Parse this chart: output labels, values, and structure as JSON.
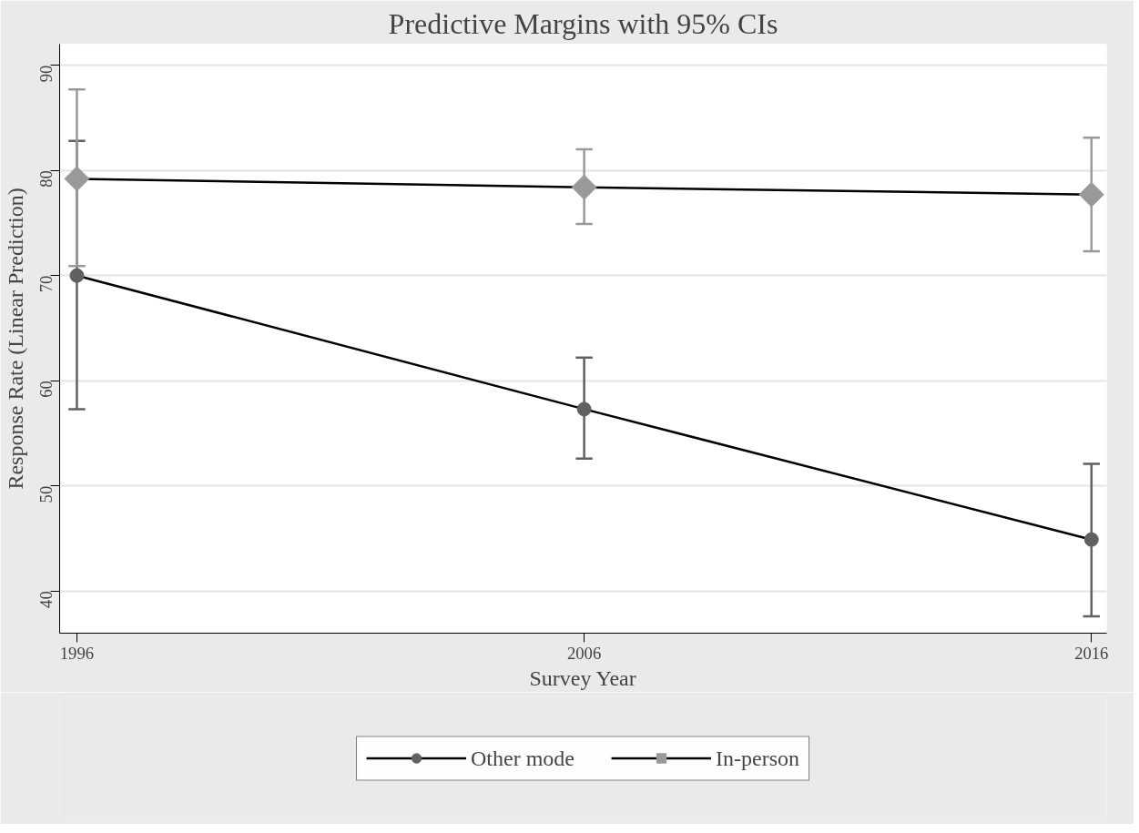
{
  "chart_data": {
    "type": "line",
    "title": "Predictive Margins with 95% CIs",
    "xlabel": "Survey Year",
    "ylabel": "Response Rate (Linear Prediction)",
    "x": [
      1996,
      2006,
      2016
    ],
    "series": [
      {
        "name": "Other mode",
        "color": "#606060",
        "marker": "circle",
        "values": [
          70.0,
          57.3,
          44.9
        ],
        "errors": [
          [
            57.3,
            82.8
          ],
          [
            52.6,
            62.2
          ],
          [
            37.6,
            52.1
          ]
        ]
      },
      {
        "name": "In-person",
        "color": "#999999",
        "marker": "diamond",
        "values": [
          79.2,
          78.4,
          77.7
        ],
        "errors": [
          [
            70.9,
            87.7
          ],
          [
            74.9,
            82.0
          ],
          [
            72.3,
            83.1
          ]
        ]
      }
    ],
    "xlim": [
      1995.66,
      2016.3
    ],
    "xticks": [
      1996,
      2006,
      2016
    ],
    "ylim": [
      36,
      92
    ],
    "yticks": [
      40,
      50,
      60,
      70,
      80,
      90
    ],
    "grid": "y",
    "legend": "bottom",
    "line_style": "solid"
  }
}
